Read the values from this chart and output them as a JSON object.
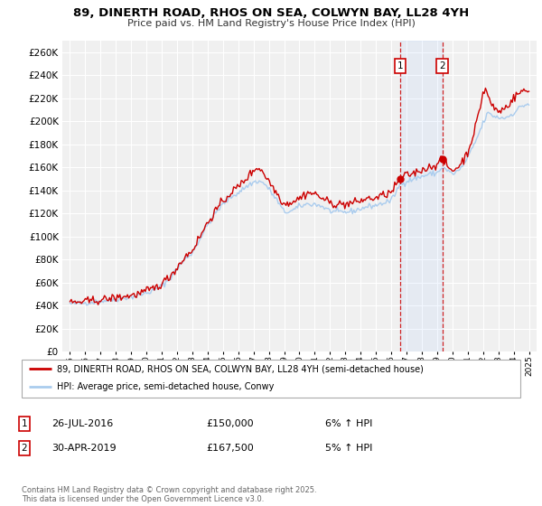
{
  "title": "89, DINERTH ROAD, RHOS ON SEA, COLWYN BAY, LL28 4YH",
  "subtitle": "Price paid vs. HM Land Registry's House Price Index (HPI)",
  "legend_line1": "89, DINERTH ROAD, RHOS ON SEA, COLWYN BAY, LL28 4YH (semi-detached house)",
  "legend_line2": "HPI: Average price, semi-detached house, Conwy",
  "footer": "Contains HM Land Registry data © Crown copyright and database right 2025.\nThis data is licensed under the Open Government Licence v3.0.",
  "red_color": "#cc0000",
  "blue_color": "#aaccee",
  "vline1_x": 2016.57,
  "vline2_x": 2019.33,
  "marker1_y": 150000,
  "marker2_y": 167500,
  "annotation1": {
    "num": "1",
    "date": "26-JUL-2016",
    "price": "£150,000",
    "hpi": "6% ↑ HPI"
  },
  "annotation2": {
    "num": "2",
    "date": "30-APR-2019",
    "price": "£167,500",
    "hpi": "5% ↑ HPI"
  },
  "ylim": [
    0,
    270000
  ],
  "xlim": [
    1994.5,
    2025.5
  ],
  "yticks": [
    0,
    20000,
    40000,
    60000,
    80000,
    100000,
    120000,
    140000,
    160000,
    180000,
    200000,
    220000,
    240000,
    260000
  ],
  "xticks": [
    1995,
    1996,
    1997,
    1998,
    1999,
    2000,
    2001,
    2002,
    2003,
    2004,
    2005,
    2006,
    2007,
    2008,
    2009,
    2010,
    2011,
    2012,
    2013,
    2014,
    2015,
    2016,
    2017,
    2018,
    2019,
    2020,
    2021,
    2022,
    2023,
    2024,
    2025
  ],
  "bg_color": "#f0f0f0",
  "grid_color": "white"
}
